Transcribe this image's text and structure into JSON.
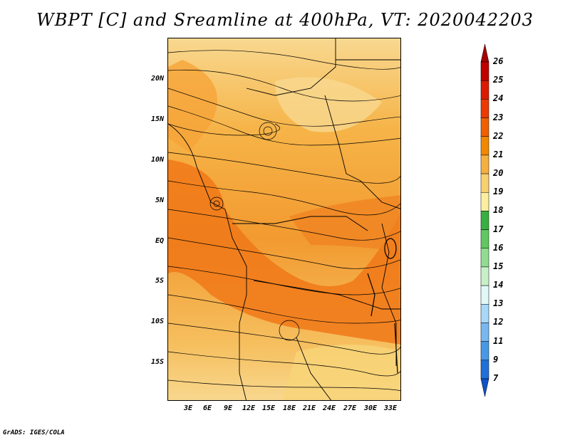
{
  "title": "WBPT [C] and Sreamline at 400hPa, VT: 2020042203",
  "footer": "GrADS: IGES/COLA",
  "map": {
    "lat_labels": [
      "20N",
      "15N",
      "10N",
      "5N",
      "EQ",
      "5S",
      "10S",
      "15S"
    ],
    "lon_labels": [
      "3E",
      "6E",
      "9E",
      "12E",
      "15E",
      "18E",
      "21E",
      "24E",
      "27E",
      "30E",
      "33E"
    ]
  },
  "colorbar": {
    "labels": [
      "26",
      "25",
      "24",
      "23",
      "22",
      "21",
      "20",
      "19",
      "18",
      "17",
      "16",
      "15",
      "14",
      "13",
      "12",
      "11",
      "9",
      "7"
    ],
    "colors": [
      "#a50000",
      "#c00000",
      "#dc1a00",
      "#ee3a00",
      "#f06000",
      "#f28800",
      "#f6b040",
      "#f8d070",
      "#fcf0a0",
      "#38b040",
      "#60c860",
      "#90dc90",
      "#c8f0c8",
      "#e0f8f8",
      "#a8d8f8",
      "#78b8f0",
      "#4898e8",
      "#2070d8",
      "#1050c8"
    ]
  }
}
